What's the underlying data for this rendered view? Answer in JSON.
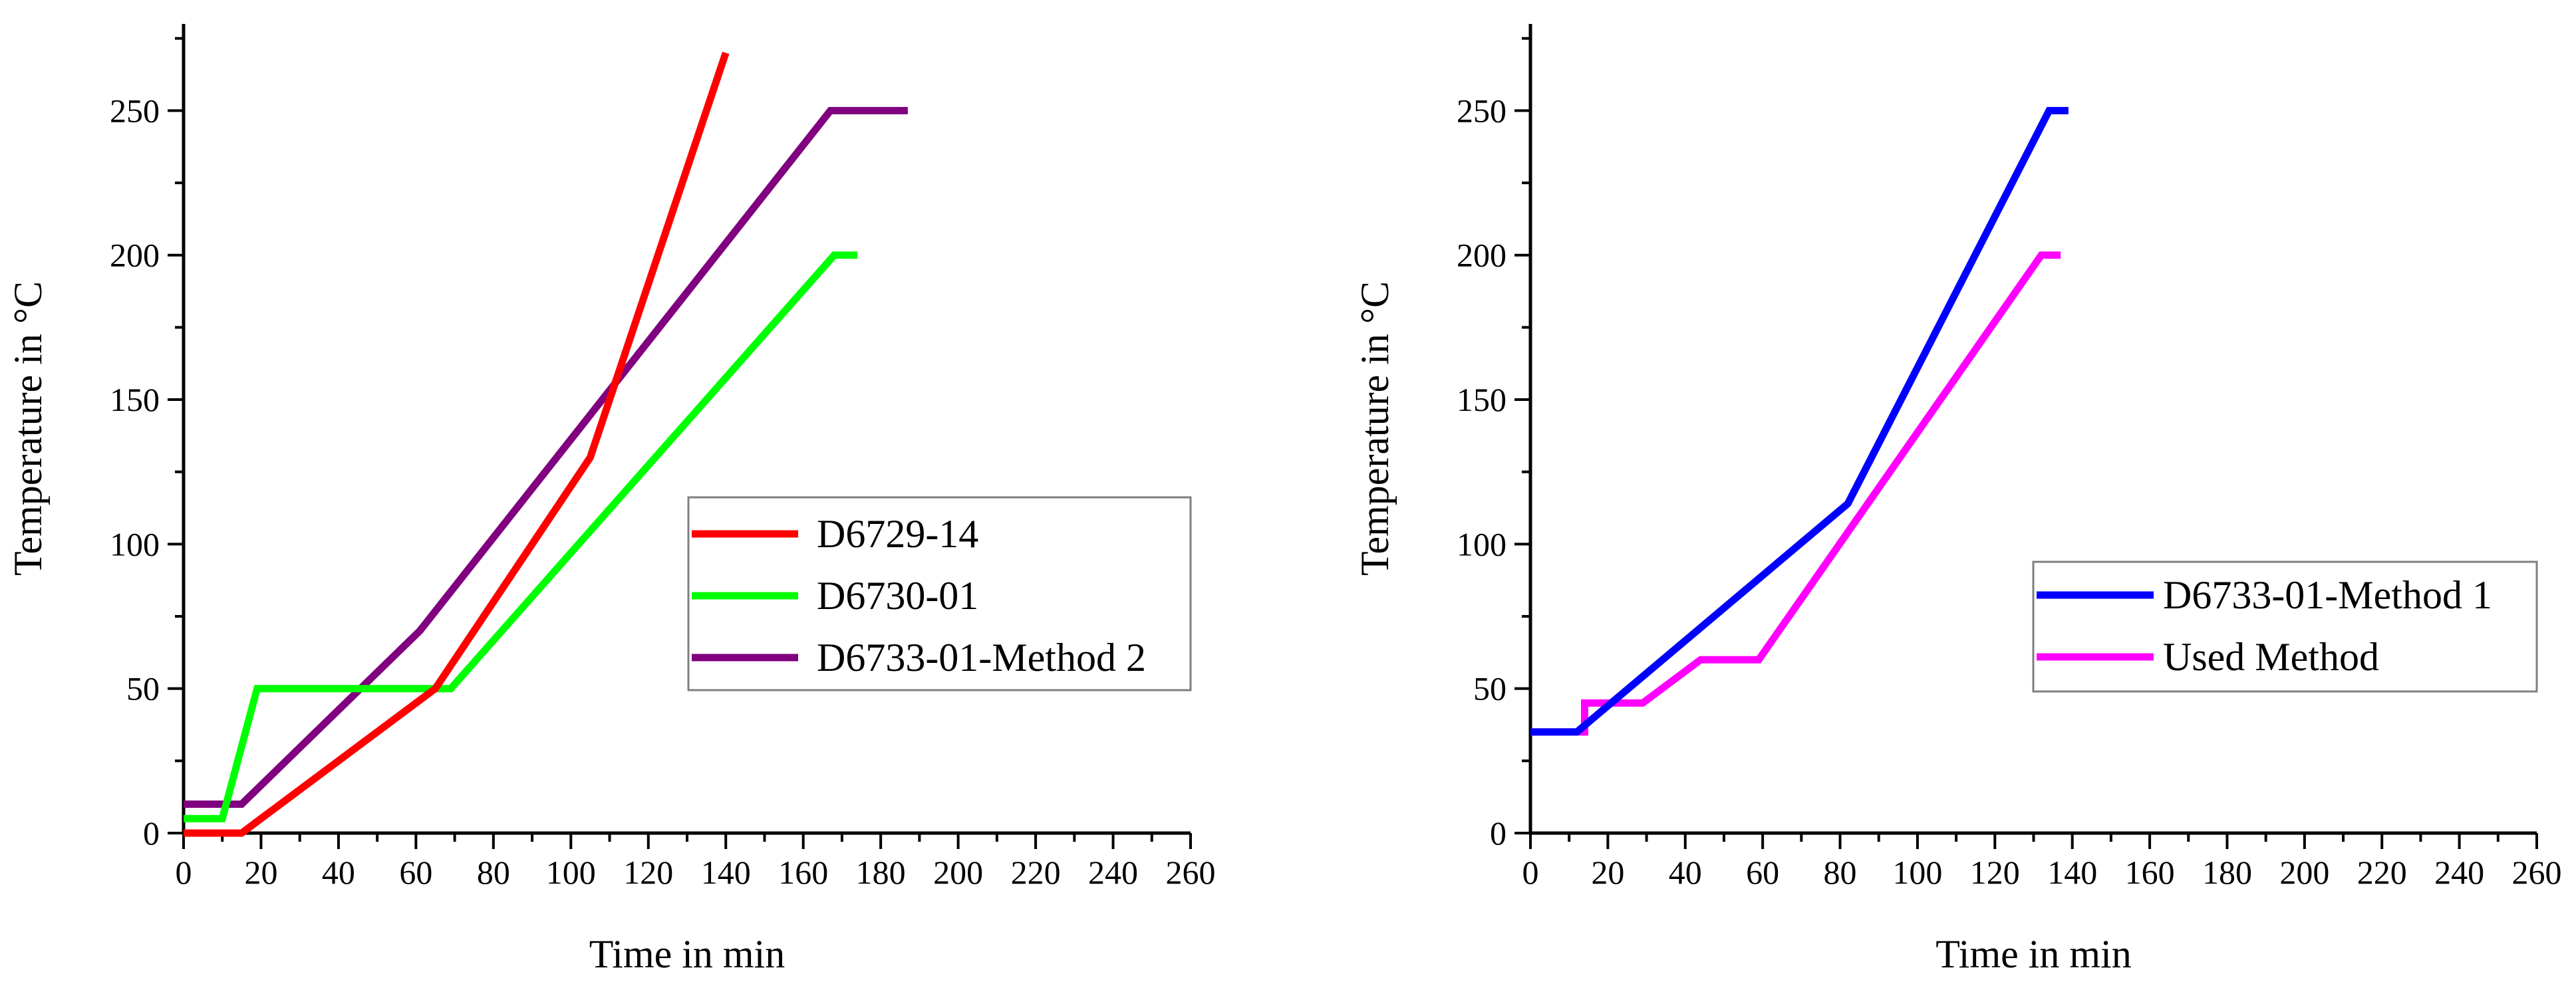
{
  "chart_data": [
    {
      "type": "line",
      "title": "",
      "xlabel": "Time in min",
      "ylabel": "Temperature in °C",
      "xlim": [
        0,
        260
      ],
      "ylim": [
        0,
        280
      ],
      "xticks": [
        0,
        20,
        40,
        60,
        80,
        100,
        120,
        140,
        160,
        180,
        200,
        220,
        240,
        260
      ],
      "yticks": [
        0,
        50,
        100,
        150,
        200,
        250
      ],
      "legend_position": "center-right",
      "series": [
        {
          "name": "D6729-14",
          "color": "#ff0000",
          "x": [
            0,
            15,
            65,
            105,
            140
          ],
          "y": [
            0,
            0,
            50,
            130,
            270
          ]
        },
        {
          "name": "D6730-01",
          "color": "#00ff00",
          "x": [
            0,
            10,
            19,
            69,
            168,
            174
          ],
          "y": [
            5,
            5,
            50,
            50,
            200,
            200
          ]
        },
        {
          "name": "D6733-01-Method 2",
          "color": "#800080",
          "x": [
            0,
            15,
            61,
            167,
            187
          ],
          "y": [
            10,
            10,
            70,
            250,
            250
          ]
        }
      ]
    },
    {
      "type": "line",
      "title": "",
      "xlabel": "Time in min",
      "ylabel": "Temperature in °C",
      "xlim": [
        0,
        260
      ],
      "ylim": [
        0,
        280
      ],
      "xticks": [
        0,
        20,
        40,
        60,
        80,
        100,
        120,
        140,
        160,
        180,
        200,
        220,
        240,
        260
      ],
      "yticks": [
        0,
        50,
        100,
        150,
        200,
        250
      ],
      "legend_position": "center-right",
      "series": [
        {
          "name": "D6733-01-Method 1",
          "color": "#0000ff",
          "x": [
            0,
            12,
            82,
            134,
            139
          ],
          "y": [
            35,
            35,
            114,
            250,
            250
          ]
        },
        {
          "name": "Used Method",
          "color": "#ff00ff",
          "x": [
            0,
            14,
            14,
            29,
            44,
            59,
            132,
            137
          ],
          "y": [
            35,
            35,
            45,
            45,
            60,
            60,
            200,
            200
          ]
        }
      ]
    }
  ]
}
